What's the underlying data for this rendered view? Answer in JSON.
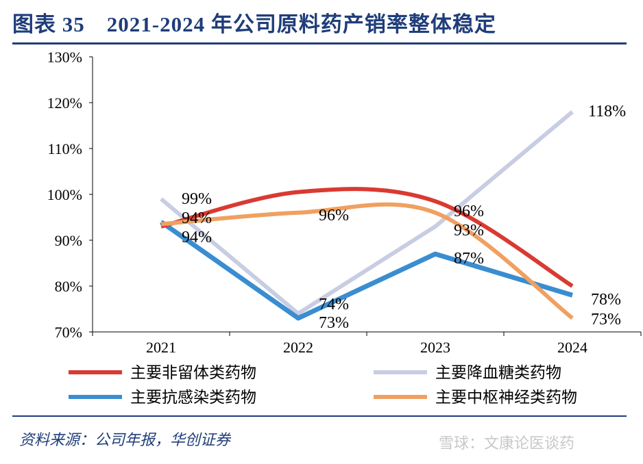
{
  "title": "图表 35　2021-2024 年公司原料药产销率整体稳定",
  "source": "资料来源：公司年报，华创证券",
  "watermark": "雪球：文康论医谈药",
  "chart_data": {
    "type": "line",
    "categories": [
      "2021",
      "2022",
      "2023",
      "2024"
    ],
    "ylim": [
      70,
      130
    ],
    "yticks": [
      "70%",
      "80%",
      "90%",
      "100%",
      "110%",
      "120%",
      "130%"
    ],
    "legend": "bottom",
    "series": [
      {
        "name": "主要非留体类药物",
        "color": "#d93a32",
        "values": [
          93,
          100.5,
          98.5,
          80
        ],
        "smooth": true
      },
      {
        "name": "主要降血糖类药物",
        "color": "#c9cde3",
        "values": [
          99,
          74,
          93,
          118
        ],
        "smooth": false
      },
      {
        "name": "主要抗感染类药物",
        "color": "#3a8dd0",
        "values": [
          94,
          73,
          87,
          78
        ],
        "smooth": false
      },
      {
        "name": "主要中枢神经类药物",
        "color": "#f0a060",
        "values": [
          93.5,
          96,
          96,
          73
        ],
        "smooth": true
      }
    ],
    "labels": [
      {
        "text": "99%",
        "cat": 0,
        "val": 99
      },
      {
        "text": "94%",
        "cat": 0,
        "val": 94
      },
      {
        "text": "94%",
        "cat": 0,
        "val": 94
      },
      {
        "text": "96%",
        "cat": 1,
        "val": 96
      },
      {
        "text": "74%",
        "cat": 1,
        "val": 74
      },
      {
        "text": "73%",
        "cat": 1,
        "val": 73
      },
      {
        "text": "96%",
        "cat": 2,
        "val": 96
      },
      {
        "text": "93%",
        "cat": 2,
        "val": 93
      },
      {
        "text": "87%",
        "cat": 2,
        "val": 87
      },
      {
        "text": "118%",
        "cat": 3,
        "val": 118
      },
      {
        "text": "78%",
        "cat": 3,
        "val": 78
      },
      {
        "text": "73%",
        "cat": 3,
        "val": 73
      }
    ]
  }
}
